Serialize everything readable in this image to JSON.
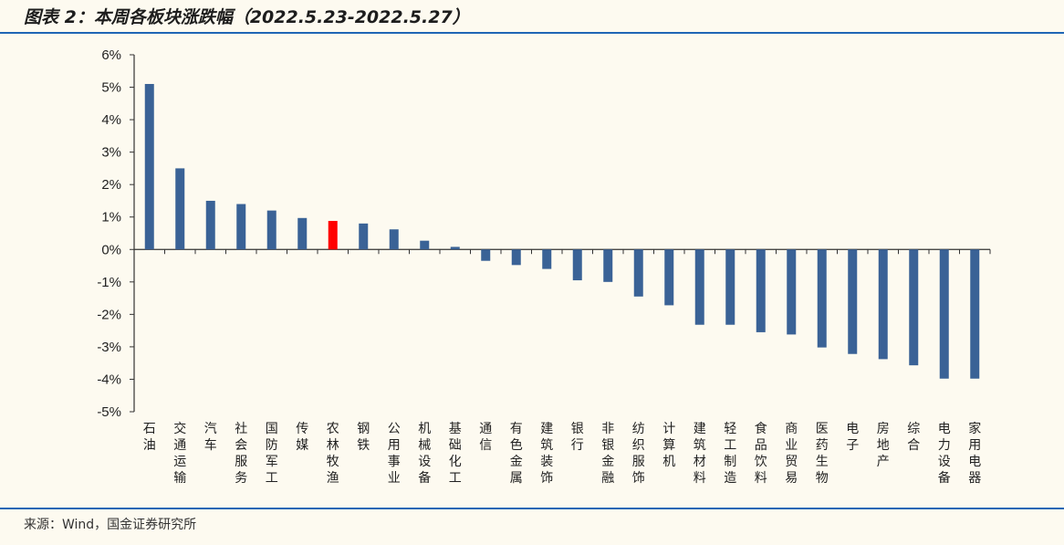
{
  "header": {
    "title": "图表 2：本周各板块涨跌幅（2022.5.23-2022.5.27）"
  },
  "footer": {
    "source": "来源：Wind，国金证券研究所"
  },
  "colors": {
    "bar": "#3a6296",
    "highlight": "#ff0000",
    "accent_rule": "#1f66b5"
  },
  "chart_data": {
    "type": "bar",
    "title": "",
    "xlabel": "",
    "ylabel": "",
    "ylim": [
      -5,
      6
    ],
    "y_ticks": [
      6,
      5,
      4,
      3,
      2,
      1,
      0,
      -1,
      -2,
      -3,
      -4,
      -5
    ],
    "y_tick_labels": [
      "6%",
      "5%",
      "4%",
      "3%",
      "2%",
      "1%",
      "0%",
      "-1%",
      "-2%",
      "-3%",
      "-4%",
      "-5%"
    ],
    "grid": false,
    "highlighted_category": "农林牧渔",
    "categories": [
      "石油",
      "交通运输",
      "汽车",
      "社会服务",
      "国防军工",
      "传媒",
      "农林牧渔",
      "钢铁",
      "公用事业",
      "机械设备",
      "基础化工",
      "通信",
      "有色金属",
      "建筑装饰",
      "银行",
      "非银金融",
      "纺织服饰",
      "计算机",
      "建筑材料",
      "轻工制造",
      "食品饮料",
      "商业贸易",
      "医药生物",
      "电子",
      "房地产",
      "综合",
      "电力设备",
      "家用电器"
    ],
    "values": [
      5.1,
      2.5,
      1.5,
      1.4,
      1.2,
      0.97,
      0.88,
      0.8,
      0.62,
      0.27,
      0.08,
      -0.35,
      -0.48,
      -0.6,
      -0.95,
      -1.0,
      -1.45,
      -1.72,
      -2.32,
      -2.32,
      -2.55,
      -2.62,
      -3.02,
      -3.22,
      -3.38,
      -3.57,
      -3.98,
      -3.98
    ]
  }
}
